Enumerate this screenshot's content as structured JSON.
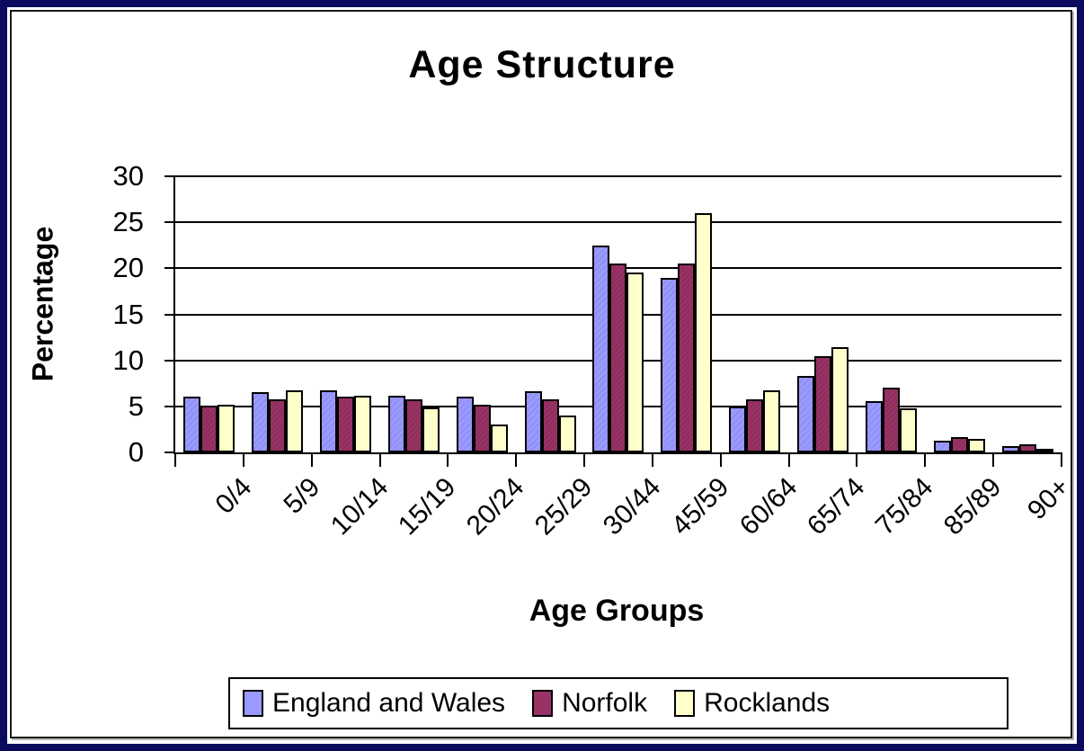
{
  "frame": {
    "outer_border_color": "#0a0a5e",
    "inner_border_color": "#1a1a1a",
    "background": "#ffffff"
  },
  "chart_data": {
    "type": "bar",
    "title": "Age Structure",
    "xlabel": "Age Groups",
    "ylabel": "Percentage",
    "ylim": [
      0,
      30
    ],
    "yticks": [
      0,
      5,
      10,
      15,
      20,
      25,
      30
    ],
    "grid": "horizontal",
    "legend_position": "bottom",
    "categories": [
      "0/4",
      "5/9",
      "10/14",
      "15/19",
      "20/24",
      "25/29",
      "30/44",
      "45/59",
      "60/64",
      "65/74",
      "75/84",
      "85/89",
      "90+"
    ],
    "series": [
      {
        "name": "England and Wales",
        "color": "#9999FF",
        "values": [
          6.1,
          6.5,
          6.7,
          6.2,
          6.1,
          6.6,
          22.5,
          19,
          5,
          8.3,
          5.6,
          1.3,
          0.7
        ]
      },
      {
        "name": "Norfolk",
        "color": "#993366",
        "values": [
          5.1,
          5.8,
          6.1,
          5.8,
          5.2,
          5.8,
          20.5,
          20.5,
          5.8,
          10.5,
          7,
          1.7,
          0.9
        ]
      },
      {
        "name": "Rocklands",
        "color": "#FFFFCC",
        "values": [
          5.2,
          6.7,
          6.2,
          4.9,
          3,
          4,
          19.5,
          26,
          6.7,
          11.4,
          4.8,
          1.5,
          0.4
        ]
      }
    ]
  }
}
